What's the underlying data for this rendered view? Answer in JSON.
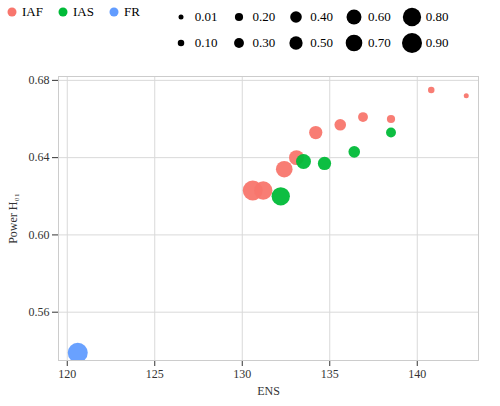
{
  "chart_data": {
    "type": "scatter",
    "x_label": "ENS",
    "y_label": "Power H₀₁",
    "xlim": [
      119.5,
      143.5
    ],
    "ylim": [
      0.535,
      0.682
    ],
    "xticks": [
      120,
      125,
      130,
      135,
      140
    ],
    "yticks": [
      0.56,
      {
        "value": 0.6,
        "label": "0.60"
      },
      0.64,
      0.68
    ],
    "grid": true,
    "legend": "top",
    "series": [
      {
        "name": "IAF",
        "color": "#F8766D",
        "x": [
          130.6,
          131.2,
          132.4,
          133.1,
          134.2,
          135.6,
          136.9,
          138.5,
          140.8,
          142.8
        ],
        "values": [
          0.623,
          0.623,
          0.634,
          0.64,
          0.653,
          0.657,
          0.661,
          0.66,
          0.675,
          0.672
        ],
        "sizes": [
          0.9,
          0.8,
          0.7,
          0.6,
          0.5,
          0.4,
          0.3,
          0.2,
          0.1,
          0.01
        ]
      },
      {
        "name": "IAS",
        "color": "#00BA38",
        "x": [
          132.2,
          133.5,
          134.7,
          136.4,
          138.5
        ],
        "values": [
          0.62,
          0.638,
          0.637,
          0.643,
          0.653
        ],
        "sizes": [
          0.8,
          0.6,
          0.5,
          0.4,
          0.3
        ]
      },
      {
        "name": "FR",
        "color": "#619CFF",
        "x": [
          120.6
        ],
        "values": [
          0.539
        ],
        "sizes": [
          0.9
        ]
      }
    ],
    "size_legend": [
      {
        "value": 0.01,
        "label": "0.01"
      },
      {
        "value": 0.1,
        "label": "0.10"
      },
      {
        "value": 0.2,
        "label": "0.20"
      },
      {
        "value": 0.3,
        "label": "0.30"
      },
      {
        "value": 0.4,
        "label": "0.40"
      },
      {
        "value": 0.5,
        "label": "0.50"
      },
      {
        "value": 0.6,
        "label": "0.60"
      },
      {
        "value": 0.7,
        "label": "0.70"
      },
      {
        "value": 0.8,
        "label": "0.80"
      },
      {
        "value": 0.9,
        "label": "0.90"
      }
    ]
  }
}
